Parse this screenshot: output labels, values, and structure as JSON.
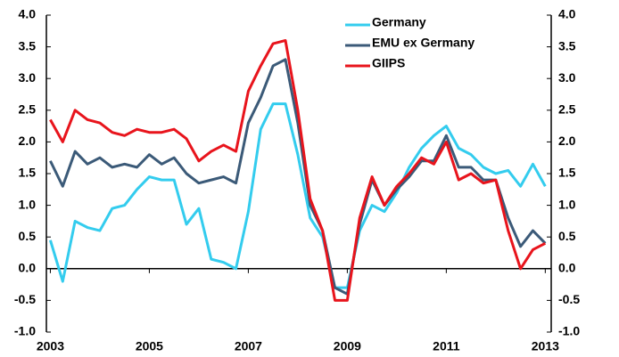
{
  "chart_data": {
    "type": "line",
    "x": [
      2003.0,
      2003.25,
      2003.5,
      2003.75,
      2004.0,
      2004.25,
      2004.5,
      2004.75,
      2005.0,
      2005.25,
      2005.5,
      2005.75,
      2006.0,
      2006.25,
      2006.5,
      2006.75,
      2007.0,
      2007.25,
      2007.5,
      2007.75,
      2008.0,
      2008.25,
      2008.5,
      2008.75,
      2009.0,
      2009.25,
      2009.5,
      2009.75,
      2010.0,
      2010.25,
      2010.5,
      2010.75,
      2011.0,
      2011.25,
      2011.5,
      2011.75,
      2012.0,
      2012.25,
      2012.5,
      2012.75,
      2013.0
    ],
    "series": [
      {
        "name": "Germany",
        "color": "#33ccee",
        "values": [
          0.45,
          -0.2,
          0.75,
          0.65,
          0.6,
          0.95,
          1.0,
          1.25,
          1.45,
          1.4,
          1.4,
          0.7,
          0.95,
          0.15,
          0.1,
          0.0,
          0.9,
          2.2,
          2.6,
          2.6,
          1.8,
          0.8,
          0.5,
          -0.3,
          -0.3,
          0.6,
          1.0,
          0.9,
          1.2,
          1.6,
          1.9,
          2.1,
          2.25,
          1.9,
          1.8,
          1.6,
          1.5,
          1.55,
          1.3,
          1.65,
          1.3
        ]
      },
      {
        "name": "EMU ex Germany",
        "color": "#3b5a78",
        "values": [
          1.7,
          1.3,
          1.85,
          1.65,
          1.75,
          1.6,
          1.65,
          1.6,
          1.8,
          1.65,
          1.75,
          1.5,
          1.35,
          1.4,
          1.45,
          1.35,
          2.3,
          2.7,
          3.2,
          3.3,
          2.3,
          1.0,
          0.6,
          -0.3,
          -0.4,
          0.7,
          1.4,
          1.0,
          1.25,
          1.45,
          1.7,
          1.7,
          2.1,
          1.6,
          1.6,
          1.4,
          1.4,
          0.8,
          0.35,
          0.6,
          0.4
        ]
      },
      {
        "name": "GIIPS",
        "color": "#e8141c",
        "values": [
          2.35,
          2.0,
          2.5,
          2.35,
          2.3,
          2.15,
          2.1,
          2.2,
          2.15,
          2.15,
          2.2,
          2.05,
          1.7,
          1.85,
          1.95,
          1.85,
          2.8,
          3.2,
          3.55,
          3.6,
          2.5,
          1.1,
          0.6,
          -0.5,
          -0.5,
          0.8,
          1.45,
          1.0,
          1.3,
          1.5,
          1.75,
          1.65,
          2.0,
          1.4,
          1.5,
          1.35,
          1.4,
          0.6,
          0.0,
          0.3,
          0.4
        ]
      }
    ],
    "xlim": [
      2002.92,
      2013.12
    ],
    "xticks": [
      2003,
      2005,
      2007,
      2009,
      2011,
      2013
    ],
    "ylim": [
      -1,
      4
    ],
    "yticks": [
      {
        "value": -1,
        "label": "-1.0"
      },
      {
        "value": -0.5,
        "label": "-0.5"
      },
      {
        "value": 0,
        "label": "0.0"
      },
      {
        "value": 0.5,
        "label": "0.5"
      },
      {
        "value": 1,
        "label": "1.0"
      },
      {
        "value": 1.5,
        "label": "1.5"
      },
      {
        "value": 2,
        "label": "2.0"
      },
      {
        "value": 2.5,
        "label": "2.5"
      },
      {
        "value": 3,
        "label": "3.0"
      },
      {
        "value": 3.5,
        "label": "3.5"
      },
      {
        "value": 4,
        "label": "4.0"
      }
    ],
    "y2lim": [
      -1,
      4
    ],
    "y2ticks": [
      {
        "value": -1,
        "label": "-1.0"
      },
      {
        "value": -0.5,
        "label": "-0.5"
      },
      {
        "value": 0,
        "label": "0.0"
      },
      {
        "value": 0.5,
        "label": "0.5"
      },
      {
        "value": 1,
        "label": "1.0"
      },
      {
        "value": 1.5,
        "label": "1.5"
      },
      {
        "value": 2,
        "label": "2.0"
      },
      {
        "value": 2.5,
        "label": "2.5"
      },
      {
        "value": 3,
        "label": "3.0"
      },
      {
        "value": 3.5,
        "label": "3.5"
      },
      {
        "value": 4,
        "label": "4.0"
      }
    ],
    "legend": "top-right"
  }
}
